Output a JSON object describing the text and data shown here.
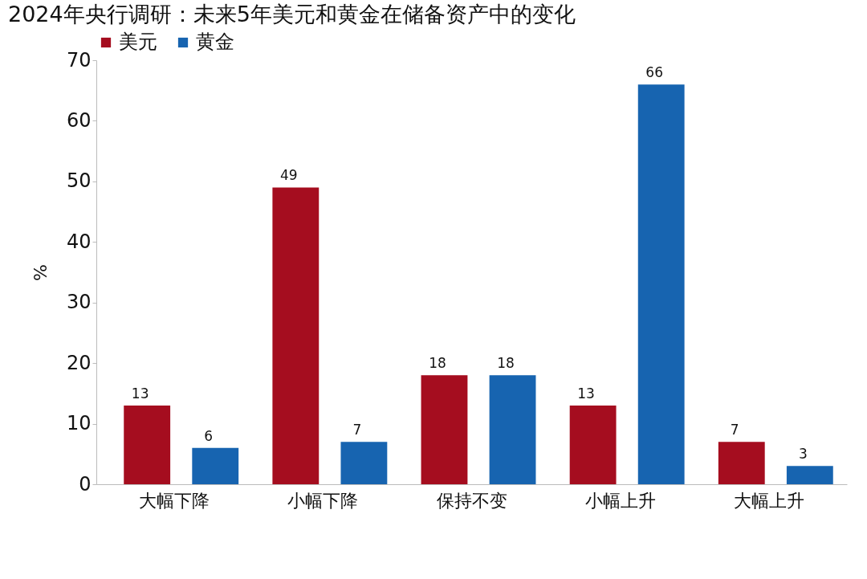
{
  "chart_data": {
    "type": "bar",
    "title": "2024年央行调研：未来5年美元和黄金在储备资产中的变化",
    "ylabel": "%",
    "categories": [
      "大幅下降",
      "小幅下降",
      "保持不变",
      "小幅上升",
      "大幅上升"
    ],
    "series": [
      {
        "name": "美元",
        "color": "#a50d1f",
        "values": [
          13,
          49,
          18,
          13,
          7
        ]
      },
      {
        "name": "黄金",
        "color": "#1764b0",
        "values": [
          6,
          7,
          18,
          66,
          3
        ]
      }
    ],
    "ylim": [
      0,
      70
    ],
    "yticks": [
      0,
      10,
      20,
      30,
      40,
      50,
      60,
      70
    ],
    "grid": false,
    "legend": "top",
    "data_labels": true
  }
}
